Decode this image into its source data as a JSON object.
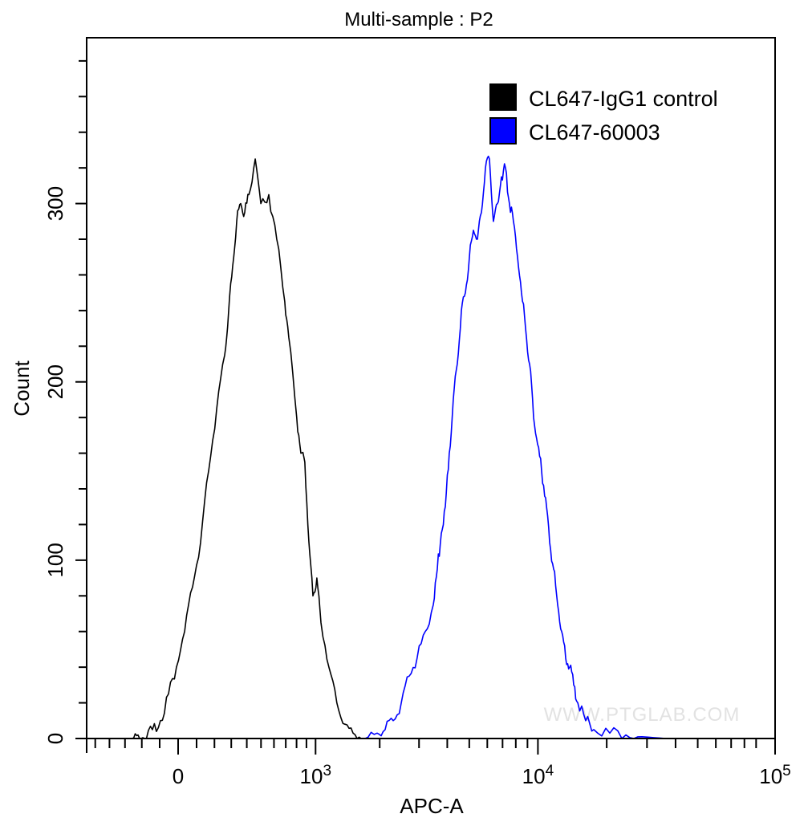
{
  "chart_data": {
    "type": "line",
    "title": "Multi-sample : P2",
    "xlabel": "APC-A",
    "ylabel": "Count",
    "x_scale": "biexponential",
    "xlim": [
      -570,
      100000
    ],
    "ylim": [
      0,
      393
    ],
    "grid": false,
    "legend_position": "top-right",
    "x_ticks": [
      {
        "value": 0,
        "base": "0",
        "exp": ""
      },
      {
        "value": 1000,
        "base": "10",
        "exp": "3"
      },
      {
        "value": 10000,
        "base": "10",
        "exp": "4"
      },
      {
        "value": 100000,
        "base": "10",
        "exp": "5"
      }
    ],
    "y_ticks": [
      {
        "value": 0,
        "label": "0"
      },
      {
        "value": 100,
        "label": "100"
      },
      {
        "value": 200,
        "label": "200"
      },
      {
        "value": 300,
        "label": "300"
      }
    ],
    "series": [
      {
        "name": "CL647-IgG1 control",
        "color": "#000000",
        "x": [
          -255,
          -222,
          -185,
          -140,
          -96,
          -52,
          -9,
          35,
          78,
          122,
          167,
          213,
          260,
          284,
          309,
          334,
          360,
          386,
          414,
          458,
          499,
          559,
          623,
          691,
          727,
          802,
          843,
          883,
          926,
          970,
          1015,
          1063,
          1162,
          1268,
          1385,
          1510,
          1646
        ],
        "y": [
          0,
          2,
          0,
          5,
          10,
          25,
          40,
          60,
          85,
          110,
          150,
          185,
          215,
          240,
          265,
          290,
          300,
          295,
          305,
          325,
          300,
          305,
          280,
          245,
          225,
          180,
          160,
          155,
          110,
          80,
          90,
          65,
          40,
          20,
          8,
          3,
          0
        ]
      },
      {
        "name": "CL647-60003",
        "color": "#0000ff",
        "x": [
          1716,
          1947,
          2116,
          2300,
          2500,
          2711,
          2942,
          3198,
          3471,
          3615,
          3765,
          3921,
          4083,
          4253,
          4429,
          4614,
          4808,
          5006,
          5214,
          5430,
          5653,
          5889,
          6130,
          6382,
          6649,
          6922,
          7211,
          7506,
          7816,
          8142,
          8474,
          8832,
          9197,
          9571,
          9972,
          10379,
          10812,
          11256,
          11717,
          12203,
          12706,
          13225,
          13776,
          14343,
          14942,
          16184,
          17553,
          20640,
          24246,
          28500,
          36300
        ],
        "y": [
          0,
          3,
          5,
          10,
          20,
          35,
          45,
          60,
          75,
          95,
          115,
          130,
          160,
          190,
          210,
          240,
          250,
          270,
          285,
          280,
          295,
          320,
          325,
          290,
          300,
          315,
          320,
          300,
          290,
          270,
          250,
          230,
          210,
          180,
          165,
          150,
          135,
          110,
          95,
          75,
          60,
          45,
          40,
          30,
          20,
          10,
          5,
          3,
          2,
          1,
          0
        ]
      }
    ],
    "watermark": "WWW.PTGLAB.COM"
  }
}
